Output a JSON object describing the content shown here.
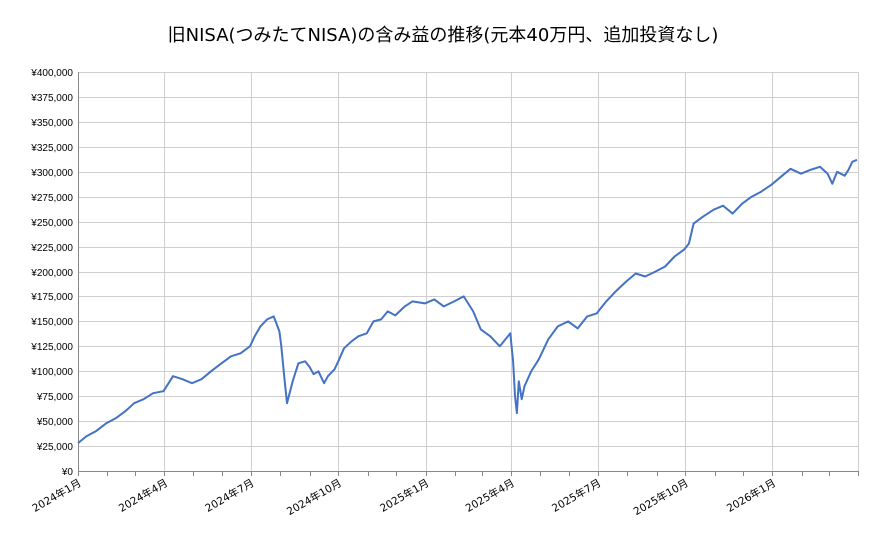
{
  "chart_data": {
    "type": "line",
    "title": "旧NISA(つみたてNISA)の含み益の推移(元本40万円、追加投資なし)",
    "xlabel": "",
    "ylabel": "",
    "ylim": [
      0,
      400000
    ],
    "yticks": [
      0,
      25000,
      50000,
      75000,
      100000,
      125000,
      150000,
      175000,
      200000,
      225000,
      250000,
      275000,
      300000,
      325000,
      350000,
      375000,
      400000
    ],
    "ytick_labels": [
      "¥0",
      "¥25,000",
      "¥50,000",
      "¥75,000",
      "¥100,000",
      "¥125,000",
      "¥150,000",
      "¥175,000",
      "¥200,000",
      "¥225,000",
      "¥250,000",
      "¥275,000",
      "¥300,000",
      "¥325,000",
      "¥350,000",
      "¥375,000",
      "¥400,000"
    ],
    "x_start": "2024-01-01",
    "x_end": "2026-03-31",
    "xtick_dates": [
      "2024-01-01",
      "2024-04-01",
      "2024-07-01",
      "2024-10-01",
      "2025-01-01",
      "2025-04-01",
      "2025-07-01",
      "2025-10-01",
      "2026-01-01"
    ],
    "xtick_labels": [
      "2024年1月",
      "2024年4月",
      "2024年7月",
      "2024年10月",
      "2025年1月",
      "2025年4月",
      "2025年7月",
      "2025年10月",
      "2026年1月"
    ],
    "minor_tick_months": true,
    "grid": true,
    "line_color": "#4472C4",
    "series": [
      {
        "name": "",
        "x": [
          "2024-01-01",
          "2024-01-10",
          "2024-01-20",
          "2024-01-31",
          "2024-02-10",
          "2024-02-20",
          "2024-02-29",
          "2024-03-10",
          "2024-03-20",
          "2024-03-31",
          "2024-04-10",
          "2024-04-20",
          "2024-04-30",
          "2024-05-10",
          "2024-05-20",
          "2024-05-31",
          "2024-06-10",
          "2024-06-20",
          "2024-06-30",
          "2024-07-05",
          "2024-07-11",
          "2024-07-18",
          "2024-07-25",
          "2024-07-31",
          "2024-08-02",
          "2024-08-05",
          "2024-08-08",
          "2024-08-14",
          "2024-08-20",
          "2024-08-27",
          "2024-09-01",
          "2024-09-05",
          "2024-09-10",
          "2024-09-16",
          "2024-09-20",
          "2024-09-27",
          "2024-10-01",
          "2024-10-07",
          "2024-10-15",
          "2024-10-22",
          "2024-10-31",
          "2024-11-07",
          "2024-11-15",
          "2024-11-22",
          "2024-11-30",
          "2024-12-10",
          "2024-12-18",
          "2024-12-31",
          "2025-01-10",
          "2025-01-20",
          "2025-01-31",
          "2025-02-10",
          "2025-02-20",
          "2025-02-28",
          "2025-03-10",
          "2025-03-20",
          "2025-03-31",
          "2025-04-03",
          "2025-04-05",
          "2025-04-07",
          "2025-04-09",
          "2025-04-12",
          "2025-04-15",
          "2025-04-22",
          "2025-04-30",
          "2025-05-10",
          "2025-05-20",
          "2025-05-31",
          "2025-06-10",
          "2025-06-20",
          "2025-06-30",
          "2025-07-10",
          "2025-07-20",
          "2025-07-31",
          "2025-08-10",
          "2025-08-20",
          "2025-08-31",
          "2025-09-10",
          "2025-09-20",
          "2025-09-30",
          "2025-10-05",
          "2025-10-10",
          "2025-10-20",
          "2025-10-31",
          "2025-11-10",
          "2025-11-20",
          "2025-11-30",
          "2025-12-10",
          "2025-12-20",
          "2025-12-31",
          "2026-01-10",
          "2026-01-20",
          "2026-01-31",
          "2026-02-10",
          "2026-02-20",
          "2026-02-28",
          "2026-03-05",
          "2026-03-10",
          "2026-03-18",
          "2026-03-22",
          "2026-03-26",
          "2026-03-31"
        ],
        "values": [
          28000,
          35000,
          40000,
          48000,
          53000,
          60000,
          68000,
          72000,
          78000,
          80000,
          95000,
          92000,
          88000,
          92000,
          100000,
          108000,
          115000,
          118000,
          125000,
          135000,
          145000,
          152000,
          155000,
          140000,
          125000,
          95000,
          68000,
          90000,
          108000,
          110000,
          104000,
          97000,
          100000,
          88000,
          95000,
          102000,
          110000,
          123000,
          130000,
          135000,
          138000,
          150000,
          152000,
          160000,
          156000,
          165000,
          170000,
          168000,
          172000,
          165000,
          170000,
          175000,
          160000,
          142000,
          135000,
          125000,
          138000,
          110000,
          75000,
          58000,
          90000,
          72000,
          85000,
          100000,
          112000,
          132000,
          145000,
          150000,
          143000,
          155000,
          158000,
          170000,
          180000,
          190000,
          198000,
          195000,
          200000,
          205000,
          215000,
          222000,
          228000,
          248000,
          255000,
          262000,
          266000,
          258000,
          268000,
          275000,
          280000,
          287000,
          295000,
          303000,
          298000,
          302000,
          305000,
          298000,
          288000,
          300000,
          296000,
          302000,
          310000,
          312000
        ]
      }
    ]
  }
}
